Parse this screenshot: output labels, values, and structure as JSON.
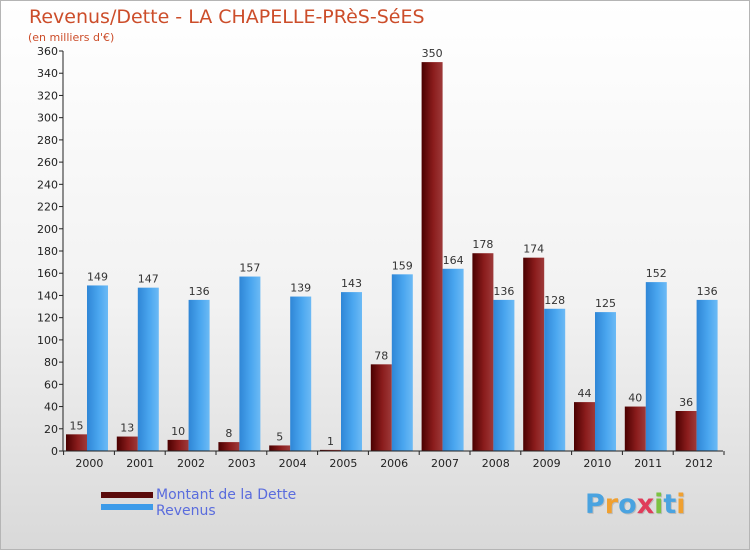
{
  "chart_data": {
    "type": "bar",
    "title": "Revenus/Dette - LA CHAPELLE-PRèS-SéES",
    "subtitle": "(en milliers d'€)",
    "categories": [
      "2000",
      "2001",
      "2002",
      "2003",
      "2004",
      "2005",
      "2006",
      "2007",
      "2008",
      "2009",
      "2010",
      "2011",
      "2012"
    ],
    "series": [
      {
        "name": "Montant de la Dette",
        "color": "#7a1010",
        "values": [
          15,
          13,
          10,
          8,
          5,
          1,
          78,
          350,
          178,
          174,
          44,
          40,
          36
        ]
      },
      {
        "name": "Revenus",
        "color": "#3d9be9",
        "values": [
          149,
          147,
          136,
          157,
          139,
          143,
          159,
          164,
          136,
          128,
          125,
          152,
          136
        ]
      }
    ],
    "ylim": [
      0,
      360
    ],
    "yticks": [
      0,
      20,
      40,
      60,
      80,
      100,
      120,
      140,
      160,
      180,
      200,
      220,
      240,
      260,
      280,
      300,
      320,
      340,
      360
    ],
    "grid": false,
    "legend_position": "bottom-left"
  },
  "brand": {
    "logo_letters": [
      "P",
      "r",
      "o",
      "x",
      "i",
      "t",
      "i"
    ],
    "logo_colors": [
      "#4aa3e0",
      "#f0a030",
      "#4aa3e0",
      "#e03c5a",
      "#7cc242",
      "#4aa3e0",
      "#f0a030"
    ]
  }
}
